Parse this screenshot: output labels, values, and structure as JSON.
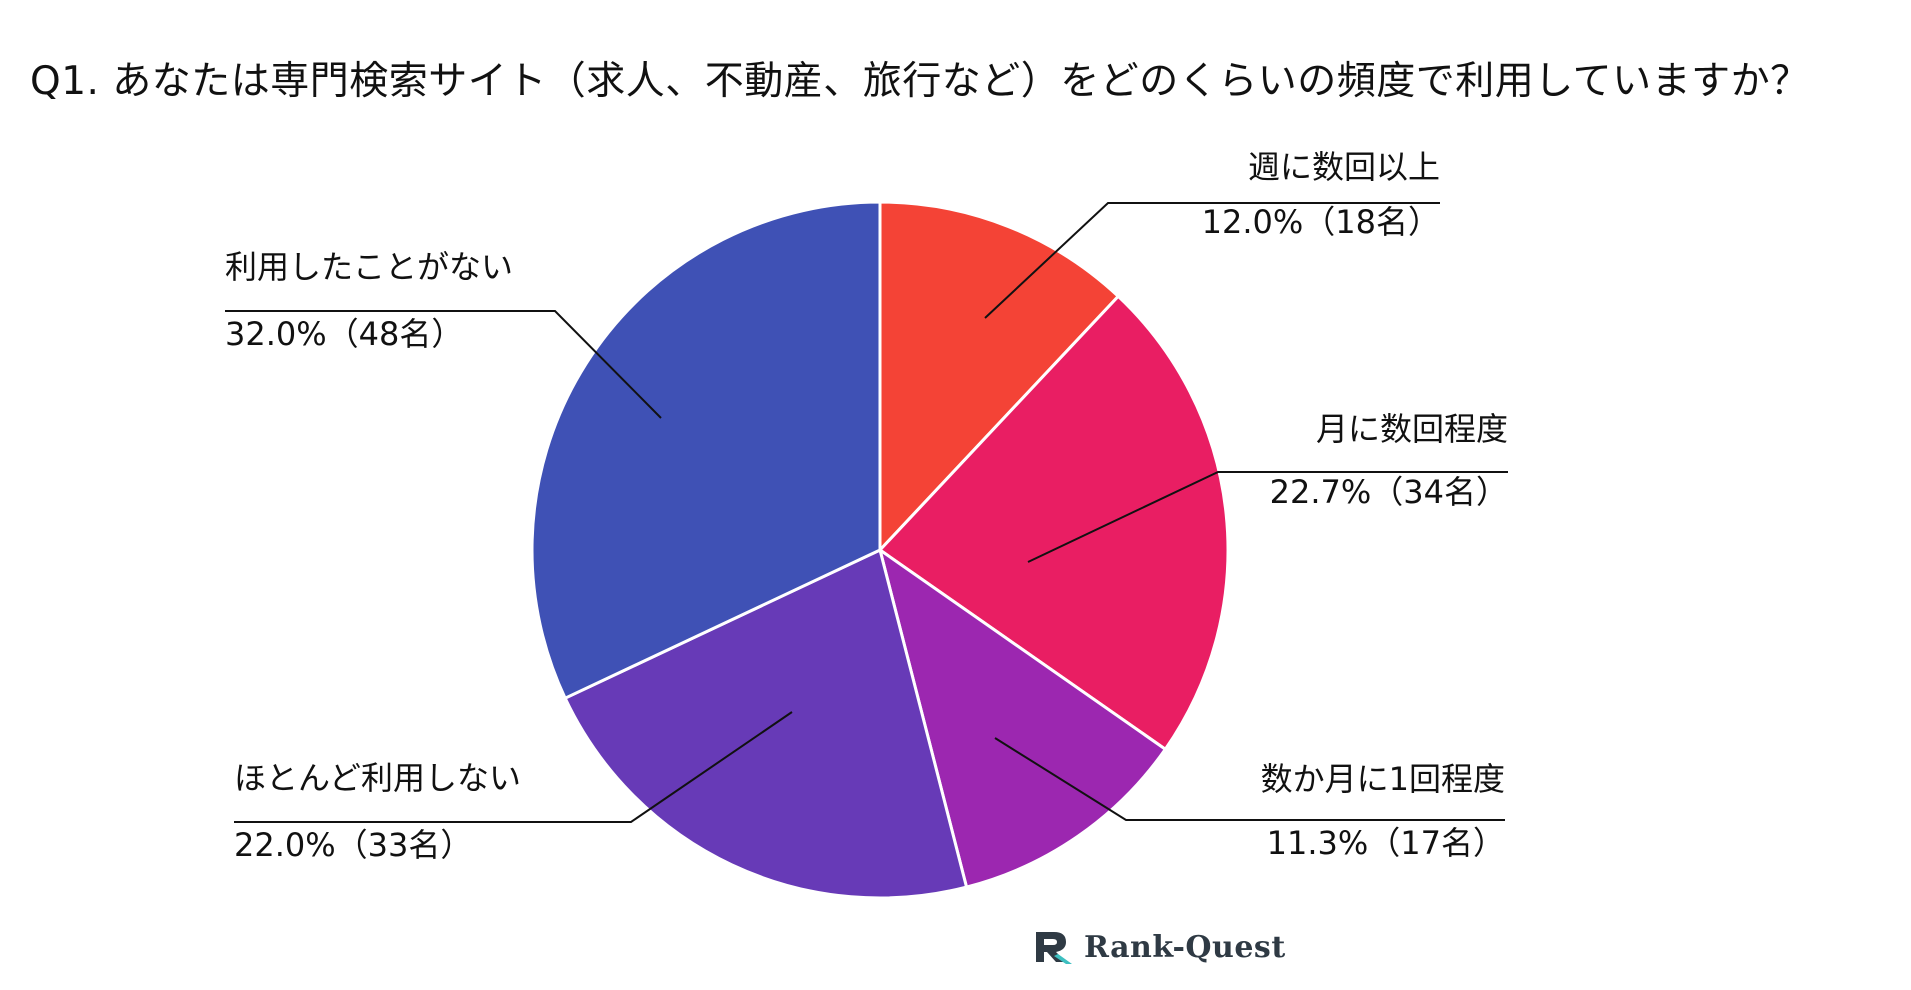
{
  "chart_data": {
    "type": "pie",
    "title": "Q1. あなたは専門検索サイト（求人、不動産、旅行など）をどのくらいの頻度で利用していますか？",
    "slices": [
      {
        "name": "週に数回以上",
        "value_label": "12.0%（18名）",
        "percent": 12.0,
        "count": 18,
        "color": "#f44336"
      },
      {
        "name": "月に数回程度",
        "value_label": "22.7%（34名）",
        "percent": 22.7,
        "count": 34,
        "color": "#e91e63"
      },
      {
        "name": "数か月に1回程度",
        "value_label": "11.3%（17名）",
        "percent": 11.3,
        "count": 17,
        "color": "#9c27b0"
      },
      {
        "name": "ほとんど利用しない",
        "value_label": "22.0%（33名）",
        "percent": 22.0,
        "count": 33,
        "color": "#673ab7"
      },
      {
        "name": "利用したことがない",
        "value_label": "32.0%（48名）",
        "percent": 32.0,
        "count": 48,
        "color": "#3f51b5"
      }
    ]
  },
  "logo": {
    "text": "Rank-Quest",
    "color": "#2f3a44",
    "accent": "#3dbfc0"
  }
}
